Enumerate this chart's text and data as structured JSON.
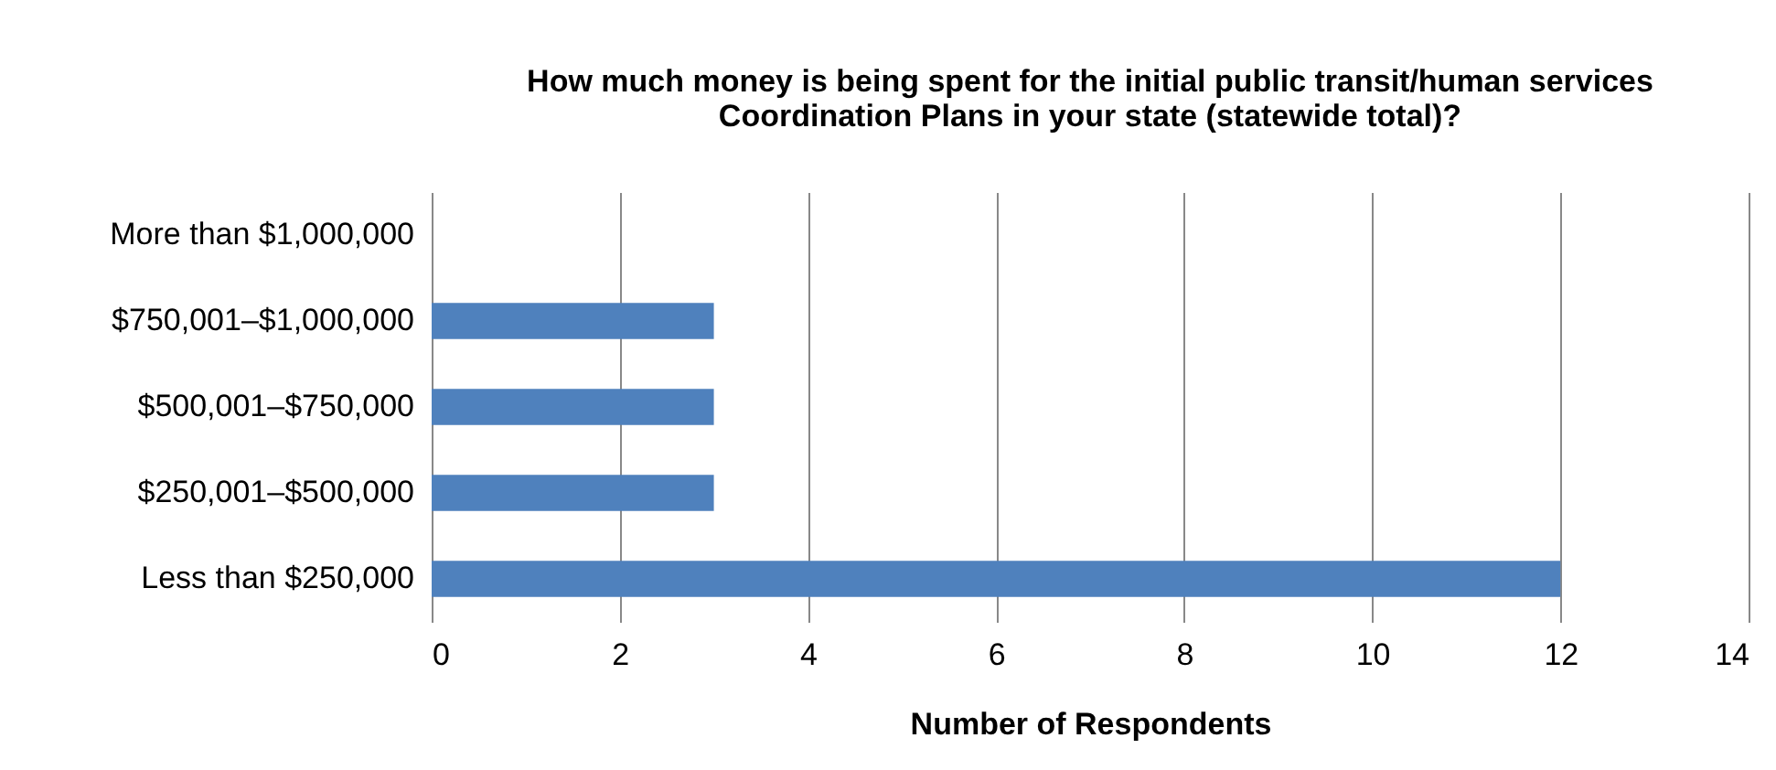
{
  "chart_data": {
    "type": "bar",
    "orientation": "horizontal",
    "title": [
      "How much money is being spent for the initial public transit/human services",
      "Coordination Plans in your state (statewide total)?"
    ],
    "xlabel": "Number of Respondents",
    "categories": [
      "More than $1,000,000",
      "$750,001–$1,000,000",
      "$500,001–$750,000",
      "$250,001–$500,000",
      "Less than $250,000"
    ],
    "values": [
      0,
      3,
      3,
      3,
      12
    ],
    "color": "#4f81bd",
    "xlim": [
      0,
      14
    ],
    "xticks": [
      0,
      2,
      4,
      6,
      8,
      10,
      12,
      14
    ],
    "grid": "x"
  }
}
